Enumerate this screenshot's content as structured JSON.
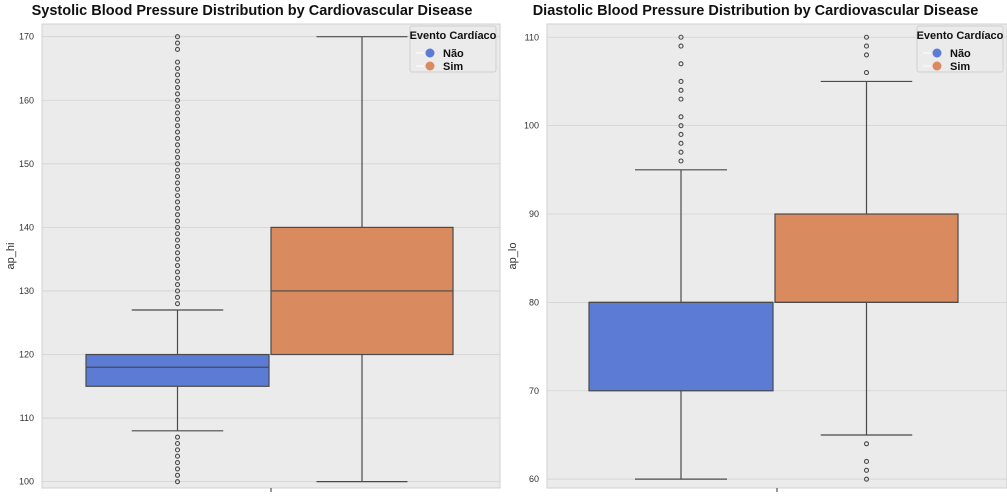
{
  "chart_data": [
    {
      "type": "box",
      "title": "Systolic Blood Pressure Distribution by Cardiovascular Disease",
      "xlabel": "",
      "ylabel": "ap_hi",
      "ylim": [
        99,
        172
      ],
      "yticks": [
        100,
        110,
        120,
        130,
        140,
        150,
        160,
        170
      ],
      "grid": true,
      "legend": {
        "title": "Evento Cardíaco",
        "position": "top-right",
        "entries": [
          {
            "label": "Não",
            "color": "#5b7bd5"
          },
          {
            "label": "Sim",
            "color": "#d98b5f"
          }
        ]
      },
      "series": [
        {
          "name": "Não",
          "color": "#5b7bd5",
          "whisker_low": 108,
          "q1": 115,
          "median": 118,
          "q3": 120,
          "whisker_high": 127,
          "outliers": [
            100,
            101,
            102,
            103,
            104,
            105,
            106,
            107,
            128,
            129,
            130,
            131,
            132,
            133,
            134,
            135,
            136,
            137,
            138,
            139,
            140,
            141,
            142,
            143,
            144,
            145,
            146,
            147,
            148,
            149,
            150,
            151,
            152,
            153,
            154,
            155,
            156,
            157,
            158,
            159,
            160,
            161,
            162,
            163,
            164,
            165,
            166,
            168,
            169,
            170
          ]
        },
        {
          "name": "Sim",
          "color": "#d98b5f",
          "whisker_low": 100,
          "q1": 120,
          "median": 130,
          "q3": 140,
          "whisker_high": 170,
          "outliers": []
        }
      ]
    },
    {
      "type": "box",
      "title": "Diastolic Blood Pressure Distribution by Cardiovascular Disease",
      "xlabel": "",
      "ylabel": "ap_lo",
      "ylim": [
        59,
        111.5
      ],
      "yticks": [
        60,
        70,
        80,
        90,
        100,
        110
      ],
      "grid": true,
      "legend": {
        "title": "Evento Cardíaco",
        "position": "top-right",
        "entries": [
          {
            "label": "Não",
            "color": "#5b7bd5"
          },
          {
            "label": "Sim",
            "color": "#d98b5f"
          }
        ]
      },
      "series": [
        {
          "name": "Não",
          "color": "#5b7bd5",
          "whisker_low": 60,
          "q1": 70,
          "median": 80,
          "q3": 80,
          "whisker_high": 95,
          "outliers": [
            96,
            97,
            98,
            99,
            100,
            101,
            103,
            104,
            105,
            107,
            109,
            110
          ]
        },
        {
          "name": "Sim",
          "color": "#d98b5f",
          "whisker_low": 65,
          "q1": 80,
          "median": 80,
          "q3": 90,
          "whisker_high": 105,
          "outliers": [
            60,
            61,
            62,
            64,
            106,
            108,
            109,
            110
          ]
        }
      ]
    }
  ]
}
